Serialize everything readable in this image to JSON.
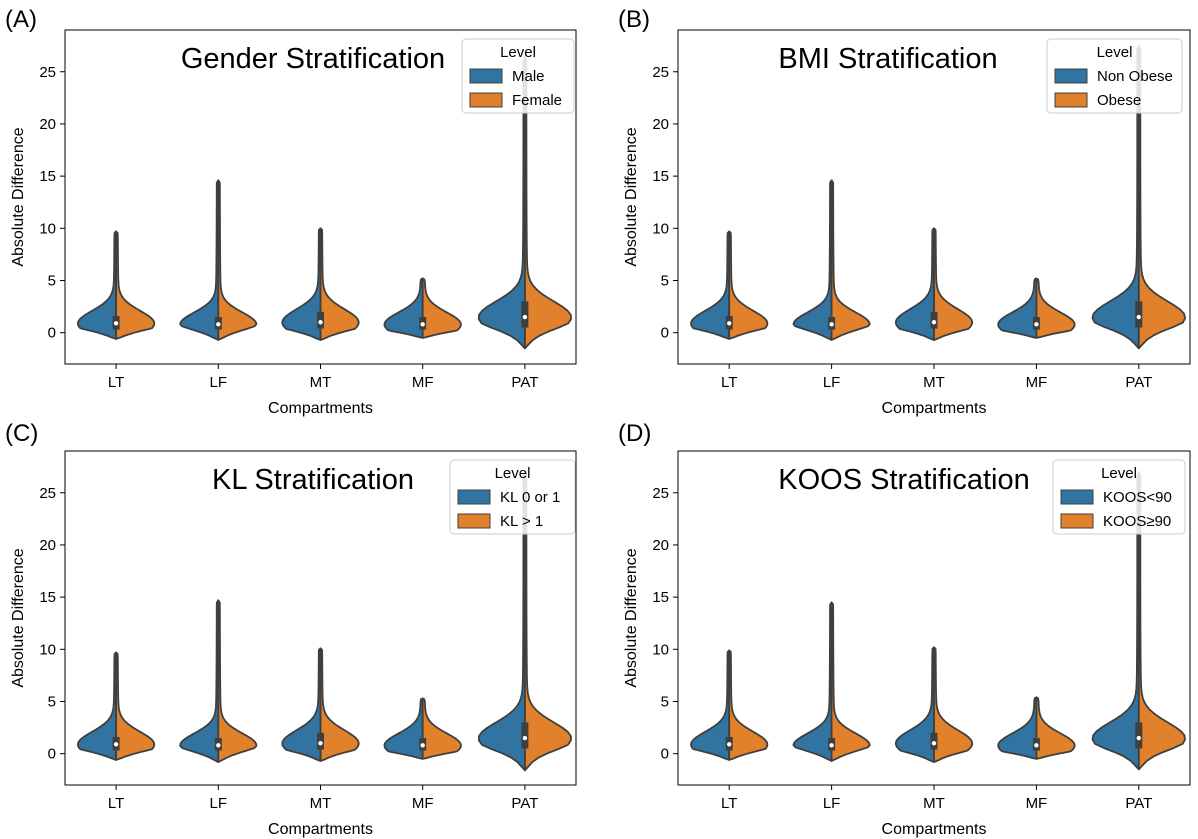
{
  "colors": {
    "series_a": "#3274a1",
    "series_b": "#e1812c",
    "outline": "#3f3f3f",
    "axis": "#000000"
  },
  "chart_data": [
    {
      "panel_label": "(A)",
      "type": "violin",
      "title": "Gender Stratification",
      "xlabel": "Compartments",
      "ylabel": "Absolute Difference",
      "ylim": [
        -3,
        29
      ],
      "yticks": [
        0,
        5,
        10,
        15,
        20,
        25
      ],
      "categories": [
        "LT",
        "LF",
        "MT",
        "MF",
        "PAT"
      ],
      "legend": {
        "title": "Level",
        "placement": "top-right"
      },
      "series": [
        {
          "name": "Male",
          "color": "#3274a1",
          "min": [
            -0.6,
            -0.7,
            -0.7,
            -0.5,
            -1.5
          ],
          "max": [
            9.7,
            14.6,
            10.0,
            5.2,
            26.5
          ],
          "median": [
            0.9,
            0.8,
            1.0,
            0.8,
            1.5
          ],
          "q1": [
            0.3,
            0.3,
            0.4,
            0.3,
            0.5
          ],
          "q3": [
            1.6,
            1.5,
            2.0,
            1.5,
            3.0
          ]
        },
        {
          "name": "Female",
          "color": "#e1812c",
          "min": [
            -0.6,
            -0.7,
            -0.7,
            -0.5,
            -1.5
          ],
          "max": [
            9.7,
            14.6,
            10.0,
            5.2,
            26.5
          ],
          "median": [
            0.9,
            0.8,
            1.0,
            0.8,
            1.5
          ],
          "q1": [
            0.3,
            0.3,
            0.4,
            0.3,
            0.5
          ],
          "q3": [
            1.6,
            1.5,
            2.0,
            1.5,
            3.0
          ]
        }
      ]
    },
    {
      "panel_label": "(B)",
      "type": "violin",
      "title": "BMI Stratification",
      "xlabel": "Compartments",
      "ylabel": "Absolute Difference",
      "ylim": [
        -3,
        29
      ],
      "yticks": [
        0,
        5,
        10,
        15,
        20,
        25
      ],
      "categories": [
        "LT",
        "LF",
        "MT",
        "MF",
        "PAT"
      ],
      "legend": {
        "title": "Level",
        "placement": "top-right"
      },
      "series": [
        {
          "name": "Non Obese",
          "color": "#3274a1",
          "min": [
            -0.6,
            -0.7,
            -0.7,
            -0.5,
            -1.5
          ],
          "max": [
            9.7,
            14.6,
            10.0,
            5.2,
            27.5
          ],
          "median": [
            0.9,
            0.8,
            1.0,
            0.8,
            1.5
          ],
          "q1": [
            0.3,
            0.3,
            0.4,
            0.3,
            0.5
          ],
          "q3": [
            1.6,
            1.5,
            2.0,
            1.5,
            3.0
          ]
        },
        {
          "name": "Obese",
          "color": "#e1812c",
          "min": [
            -0.6,
            -0.7,
            -0.7,
            -0.5,
            -1.5
          ],
          "max": [
            9.7,
            14.6,
            10.0,
            5.2,
            27.5
          ],
          "median": [
            0.9,
            0.8,
            1.0,
            0.8,
            1.5
          ],
          "q1": [
            0.3,
            0.3,
            0.4,
            0.3,
            0.5
          ],
          "q3": [
            1.6,
            1.5,
            2.0,
            1.5,
            3.0
          ]
        }
      ]
    },
    {
      "panel_label": "(C)",
      "type": "violin",
      "title": "KL Stratification",
      "xlabel": "Compartments",
      "ylabel": "Absolute Difference",
      "ylim": [
        -3,
        29
      ],
      "yticks": [
        0,
        5,
        10,
        15,
        20,
        25
      ],
      "categories": [
        "LT",
        "LF",
        "MT",
        "MF",
        "PAT"
      ],
      "legend": {
        "title": "Level",
        "placement": "top-right"
      },
      "series": [
        {
          "name": "KL 0 or 1",
          "color": "#3274a1",
          "min": [
            -0.6,
            -0.8,
            -0.7,
            -0.5,
            -1.6
          ],
          "max": [
            9.7,
            14.7,
            10.1,
            5.3,
            27.0
          ],
          "median": [
            0.9,
            0.8,
            1.0,
            0.8,
            1.5
          ],
          "q1": [
            0.3,
            0.3,
            0.4,
            0.3,
            0.5
          ],
          "q3": [
            1.6,
            1.5,
            2.0,
            1.5,
            3.0
          ]
        },
        {
          "name": "KL > 1",
          "color": "#e1812c",
          "min": [
            -0.6,
            -0.8,
            -0.7,
            -0.5,
            -1.6
          ],
          "max": [
            9.7,
            14.7,
            10.1,
            5.3,
            27.0
          ],
          "median": [
            0.9,
            0.8,
            1.0,
            0.8,
            1.5
          ],
          "q1": [
            0.3,
            0.3,
            0.4,
            0.3,
            0.5
          ],
          "q3": [
            1.6,
            1.5,
            2.0,
            1.5,
            3.0
          ]
        }
      ]
    },
    {
      "panel_label": "(D)",
      "type": "violin",
      "title": "KOOS Stratification",
      "xlabel": "Compartments",
      "ylabel": "Absolute Difference",
      "ylim": [
        -3,
        29
      ],
      "yticks": [
        0,
        5,
        10,
        15,
        20,
        25
      ],
      "categories": [
        "LT",
        "LF",
        "MT",
        "MF",
        "PAT"
      ],
      "legend": {
        "title": "Level",
        "placement": "top-right"
      },
      "series": [
        {
          "name": "KOOS<90",
          "color": "#3274a1",
          "min": [
            -0.6,
            -0.7,
            -0.8,
            -0.5,
            -1.5
          ],
          "max": [
            9.9,
            14.5,
            10.2,
            5.4,
            27.0
          ],
          "median": [
            0.9,
            0.8,
            1.0,
            0.8,
            1.5
          ],
          "q1": [
            0.3,
            0.3,
            0.4,
            0.3,
            0.5
          ],
          "q3": [
            1.6,
            1.5,
            2.0,
            1.5,
            3.0
          ]
        },
        {
          "name": "KOOS≥90",
          "color": "#e1812c",
          "min": [
            -0.6,
            -0.7,
            -0.8,
            -0.5,
            -1.5
          ],
          "max": [
            9.9,
            14.5,
            10.2,
            5.4,
            27.0
          ],
          "median": [
            0.9,
            0.8,
            1.0,
            0.8,
            1.5
          ],
          "q1": [
            0.3,
            0.3,
            0.4,
            0.3,
            0.5
          ],
          "q3": [
            1.6,
            1.5,
            2.0,
            1.5,
            3.0
          ]
        }
      ]
    }
  ]
}
